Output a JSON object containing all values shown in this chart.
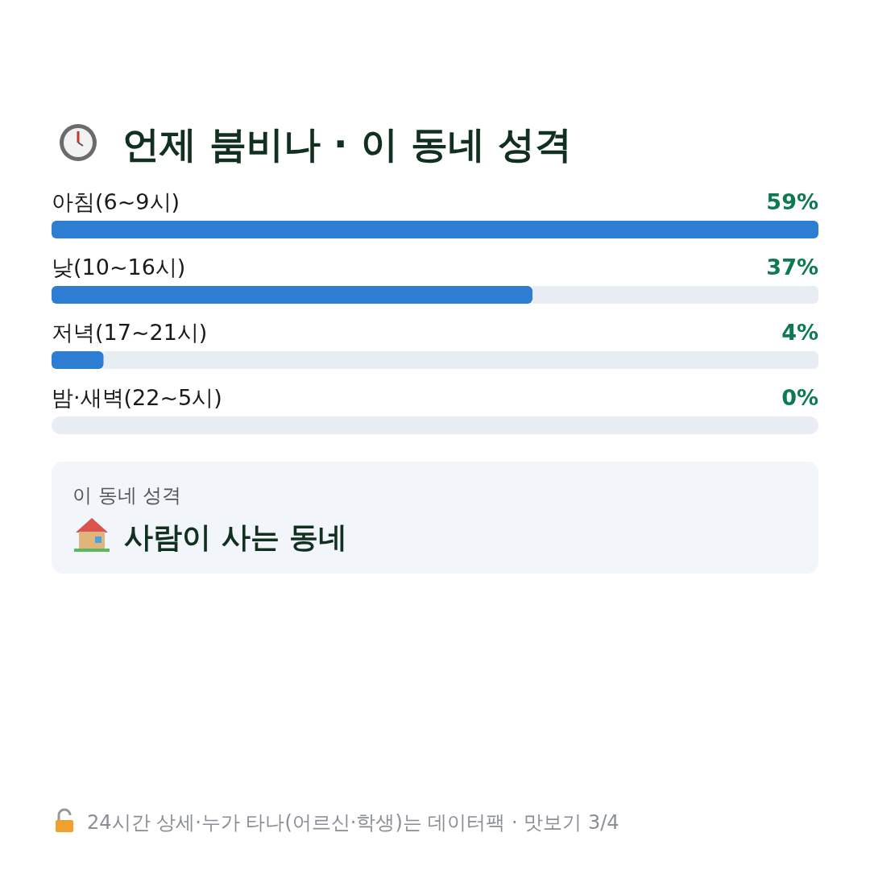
{
  "chart_data": {
    "type": "bar",
    "orientation": "horizontal",
    "title": "언제 붐비나 · 이 동네 성격",
    "categories": [
      "아침(6~9시)",
      "낮(10~16시)",
      "저녁(17~21시)",
      "밤·새벽(22~5시)"
    ],
    "values": [
      59,
      37,
      4,
      0
    ],
    "color": "#2d7dd2",
    "data_labels": true,
    "value_labels": [
      "59%",
      "37%",
      "4%",
      "0%"
    ],
    "annotations": [
      "이 동네 성격",
      "사람이 사는 동네",
      "24시간 상세·누가 타나(어르신·학생)는 데이터팩 · 맛보기 3/4"
    ]
  }
}
